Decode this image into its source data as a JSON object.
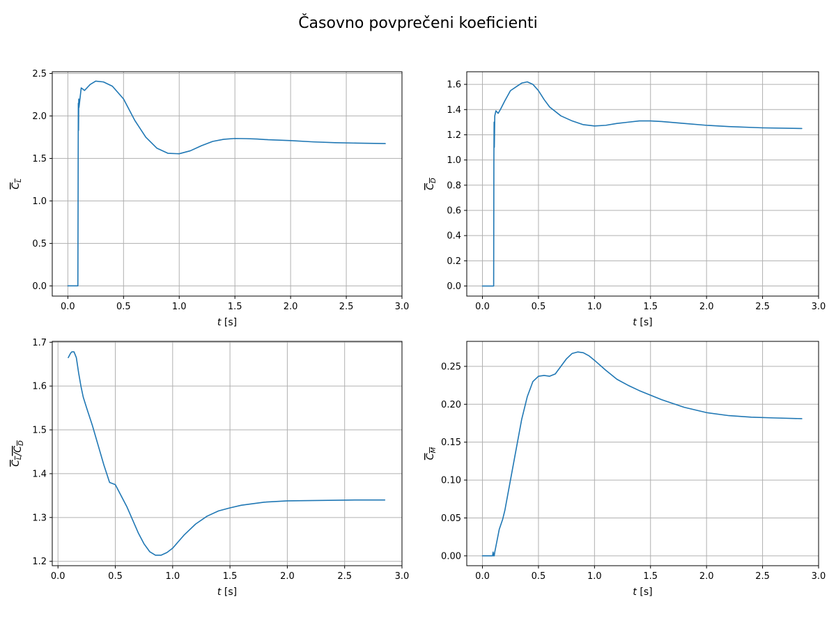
{
  "figure": {
    "suptitle": "Časovno povprečeni koeficienti",
    "line_color": "#1f77b4",
    "grid_color": "#b0b0b0"
  },
  "chart_data": [
    {
      "type": "line",
      "xlabel": "t [s]",
      "ylabel": "CL",
      "ylabel_sub": "L",
      "xlim": [
        -0.14,
        3.0
      ],
      "ylim": [
        -0.12,
        2.52
      ],
      "xticks": [
        0.0,
        0.5,
        1.0,
        1.5,
        2.0,
        2.5,
        3.0
      ],
      "yticks": [
        0.0,
        0.5,
        1.0,
        1.5,
        2.0,
        2.5
      ],
      "grid": true,
      "series": [
        {
          "x": [
            0.0,
            0.09,
            0.092,
            0.094,
            0.096,
            0.098,
            0.1,
            0.12,
            0.15,
            0.2,
            0.25,
            0.32,
            0.4,
            0.5,
            0.6,
            0.7,
            0.8,
            0.9,
            1.0,
            1.1,
            1.2,
            1.3,
            1.4,
            1.5,
            1.6,
            1.7,
            1.8,
            2.0,
            2.2,
            2.4,
            2.6,
            2.85
          ],
          "y": [
            0.0,
            0.0,
            1.0,
            2.15,
            1.83,
            2.2,
            2.1,
            2.33,
            2.3,
            2.37,
            2.41,
            2.4,
            2.35,
            2.2,
            1.95,
            1.75,
            1.62,
            1.56,
            1.555,
            1.59,
            1.65,
            1.7,
            1.725,
            1.735,
            1.733,
            1.728,
            1.72,
            1.71,
            1.695,
            1.685,
            1.68,
            1.675
          ]
        }
      ]
    },
    {
      "type": "line",
      "xlabel": "t [s]",
      "ylabel": "CD",
      "ylabel_sub": "D",
      "xlim": [
        -0.14,
        3.0
      ],
      "ylim": [
        -0.08,
        1.7
      ],
      "xticks": [
        0.0,
        0.5,
        1.0,
        1.5,
        2.0,
        2.5,
        3.0
      ],
      "yticks": [
        0.0,
        0.2,
        0.4,
        0.6,
        0.8,
        1.0,
        1.2,
        1.4,
        1.6
      ],
      "grid": true,
      "series": [
        {
          "x": [
            0.0,
            0.1,
            0.102,
            0.104,
            0.106,
            0.11,
            0.12,
            0.14,
            0.16,
            0.2,
            0.25,
            0.3,
            0.35,
            0.4,
            0.45,
            0.5,
            0.55,
            0.6,
            0.7,
            0.8,
            0.9,
            1.0,
            1.1,
            1.2,
            1.3,
            1.4,
            1.5,
            1.6,
            1.8,
            2.0,
            2.2,
            2.5,
            2.85
          ],
          "y": [
            0.0,
            0.0,
            1.0,
            1.3,
            1.1,
            1.35,
            1.39,
            1.37,
            1.4,
            1.47,
            1.55,
            1.58,
            1.61,
            1.62,
            1.6,
            1.55,
            1.48,
            1.42,
            1.35,
            1.31,
            1.28,
            1.27,
            1.275,
            1.29,
            1.3,
            1.31,
            1.31,
            1.305,
            1.29,
            1.275,
            1.265,
            1.255,
            1.25
          ]
        }
      ]
    },
    {
      "type": "line",
      "xlabel": "t [s]",
      "ylabel": "CL/CD",
      "ylabel_sub": "L",
      "xlim": [
        -0.05,
        3.0
      ],
      "ylim": [
        1.19,
        1.702
      ],
      "xticks": [
        0.0,
        0.5,
        1.0,
        1.5,
        2.0,
        2.5,
        3.0
      ],
      "yticks": [
        1.2,
        1.3,
        1.4,
        1.5,
        1.6,
        1.7
      ],
      "grid": true,
      "series": [
        {
          "x": [
            0.09,
            0.1,
            0.11,
            0.12,
            0.14,
            0.16,
            0.18,
            0.2,
            0.22,
            0.25,
            0.3,
            0.35,
            0.4,
            0.45,
            0.5,
            0.55,
            0.6,
            0.65,
            0.7,
            0.75,
            0.8,
            0.85,
            0.9,
            0.95,
            1.0,
            1.05,
            1.1,
            1.2,
            1.3,
            1.4,
            1.5,
            1.6,
            1.8,
            2.0,
            2.3,
            2.6,
            2.85
          ],
          "y": [
            1.665,
            1.67,
            1.675,
            1.678,
            1.678,
            1.665,
            1.63,
            1.6,
            1.575,
            1.55,
            1.51,
            1.465,
            1.42,
            1.38,
            1.375,
            1.35,
            1.325,
            1.295,
            1.265,
            1.24,
            1.222,
            1.214,
            1.214,
            1.22,
            1.23,
            1.245,
            1.26,
            1.285,
            1.303,
            1.315,
            1.322,
            1.328,
            1.335,
            1.338,
            1.339,
            1.34,
            1.34
          ]
        }
      ]
    },
    {
      "type": "line",
      "xlabel": "t [s]",
      "ylabel": "CM",
      "ylabel_sub": "M",
      "xlim": [
        -0.14,
        3.0
      ],
      "ylim": [
        -0.013,
        0.283
      ],
      "xticks": [
        0.0,
        0.5,
        1.0,
        1.5,
        2.0,
        2.5,
        3.0
      ],
      "yticks": [
        0.0,
        0.05,
        0.1,
        0.15,
        0.2,
        0.25
      ],
      "grid": true,
      "series": [
        {
          "x": [
            0.0,
            0.09,
            0.095,
            0.098,
            0.1,
            0.105,
            0.11,
            0.13,
            0.15,
            0.18,
            0.2,
            0.25,
            0.3,
            0.35,
            0.4,
            0.45,
            0.5,
            0.55,
            0.6,
            0.65,
            0.7,
            0.75,
            0.8,
            0.85,
            0.9,
            0.95,
            1.0,
            1.1,
            1.2,
            1.3,
            1.4,
            1.5,
            1.6,
            1.8,
            2.0,
            2.2,
            2.4,
            2.6,
            2.85
          ],
          "y": [
            0.0,
            0.0,
            0.005,
            0.0,
            0.003,
            0.0,
            0.005,
            0.02,
            0.035,
            0.048,
            0.06,
            0.1,
            0.14,
            0.18,
            0.21,
            0.23,
            0.237,
            0.238,
            0.237,
            0.24,
            0.25,
            0.26,
            0.267,
            0.269,
            0.268,
            0.264,
            0.258,
            0.245,
            0.233,
            0.225,
            0.218,
            0.212,
            0.206,
            0.196,
            0.189,
            0.185,
            0.183,
            0.182,
            0.181
          ]
        }
      ]
    }
  ]
}
